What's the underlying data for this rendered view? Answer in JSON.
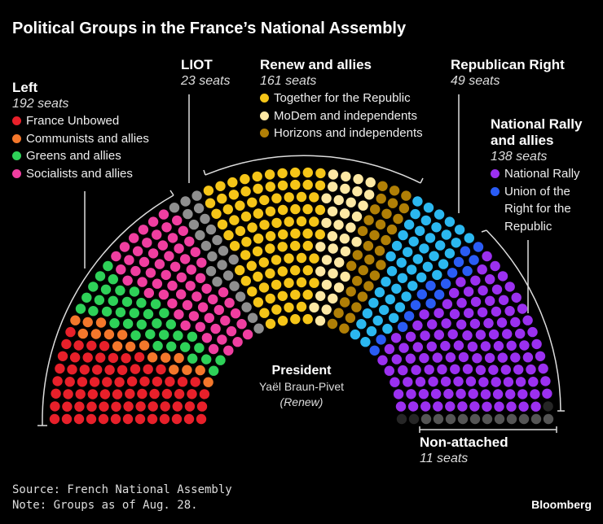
{
  "title": "Political Groups in the France’s National Assembly",
  "groups": {
    "left": {
      "name": "Left",
      "seats": "192 seats"
    },
    "liot": {
      "name": "LIOT",
      "seats": "23 seats"
    },
    "renew": {
      "name": "Renew and allies",
      "seats": "161 seats"
    },
    "lr": {
      "name": "Republican Right",
      "seats": "49 seats"
    },
    "rn": {
      "name": "National Rally and allies",
      "name_l1": "National Rally",
      "name_l2": "and allies",
      "seats": "138 seats"
    },
    "ni": {
      "name": "Non-attached",
      "seats": "11 seats"
    }
  },
  "legend": {
    "left": [
      "France Unbowed",
      "Communists and allies",
      "Greens and allies",
      "Socialists and allies"
    ],
    "renew": [
      "Together for the Republic",
      "MoDem and independents",
      "Horizons and independents"
    ],
    "rn": [
      "National Rally",
      "Union of the Right for the Republic"
    ],
    "rn_lines": [
      "Union of the",
      "Right for the",
      "Republic"
    ]
  },
  "president": {
    "label": "President",
    "name": "Yaël Braun-Pivet",
    "party": "(Renew)"
  },
  "source": "Source: French National Assembly",
  "note": "Note: Groups as of Aug. 28.",
  "logo": "Bloomberg",
  "chart_data": {
    "type": "parliament",
    "total_seats": 577,
    "parties": [
      {
        "name": "France Unbowed",
        "seats": 72,
        "color": "#e8202a"
      },
      {
        "name": "Communists and allies",
        "seats": 17,
        "color": "#f4772b"
      },
      {
        "name": "Greens and allies",
        "seats": 38,
        "color": "#2ed158"
      },
      {
        "name": "Socialists and allies",
        "seats": 65,
        "color": "#f03ea0"
      },
      {
        "name": "LIOT",
        "seats": 23,
        "color": "#8f8f8f"
      },
      {
        "name": "Together for the Republic",
        "seats": 92,
        "color": "#f5c518"
      },
      {
        "name": "MoDem and independents",
        "seats": 36,
        "color": "#fde8a4"
      },
      {
        "name": "Horizons and independents",
        "seats": 33,
        "color": "#b07f06"
      },
      {
        "name": "Republican Right",
        "seats": 49,
        "color": "#2bb8f0"
      },
      {
        "name": "Union of the Right for the Republic",
        "seats": 16,
        "color": "#2a5cf5"
      },
      {
        "name": "National Rally",
        "seats": 122,
        "color": "#9b30f0"
      },
      {
        "name": "Vacant",
        "seats": 3,
        "color": "#262626"
      },
      {
        "name": "Non-attached",
        "seats": 11,
        "color": "#555555"
      }
    ]
  }
}
